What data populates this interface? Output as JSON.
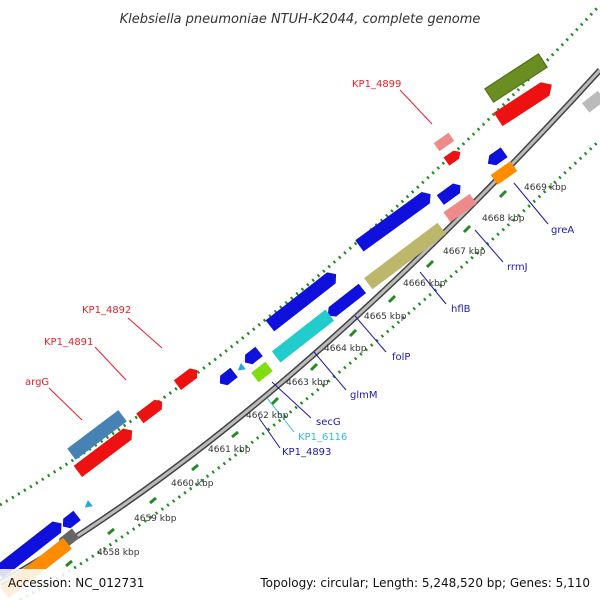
{
  "title": "Klebsiella pneumoniae NTUH-K2044, complete genome",
  "footer": {
    "accession": "Accession: NC_012731",
    "stats": "Topology: circular; Length: 5,248,520 bp; Genes: 5,110"
  },
  "ticks": [
    "4658 kbp",
    "4659 kbp",
    "4660 kbp",
    "4661 kbp",
    "4662 kbp",
    "4663 kbp",
    "4664 kbp",
    "4665 kbp",
    "4666 kbp",
    "4667 kbp",
    "4668 kbp",
    "4669 kbp"
  ],
  "gene_labels": [
    {
      "name": "KP1_4899",
      "color": "#e8202a"
    },
    {
      "name": "KP1_4892",
      "color": "#e8202a"
    },
    {
      "name": "KP1_4891",
      "color": "#e8202a"
    },
    {
      "name": "argG",
      "color": "#e8202a"
    },
    {
      "name": "greA",
      "color": "#1a1aa8"
    },
    {
      "name": "rrmJ",
      "color": "#1a1aa8"
    },
    {
      "name": "hflB",
      "color": "#1a1aa8"
    },
    {
      "name": "folP",
      "color": "#1a1aa8"
    },
    {
      "name": "glmM",
      "color": "#1a1aa8"
    },
    {
      "name": "secG",
      "color": "#1a1aa8"
    },
    {
      "name": "KP1_6116",
      "color": "#33bbdd"
    },
    {
      "name": "KP1_4893",
      "color": "#1a1aa8"
    }
  ],
  "colors": {
    "red": "#ee1111",
    "blue": "#1010dd",
    "salmon": "#ef8a8a",
    "olive": "#6b8e23",
    "khaki": "#bdb76b",
    "cyan": "#22cccc",
    "steelblue": "#4682b4",
    "orange": "#ff8c00",
    "gray": "#666666",
    "lime": "#7fdd11",
    "backbone": "#888888",
    "dots": "#228b22"
  }
}
